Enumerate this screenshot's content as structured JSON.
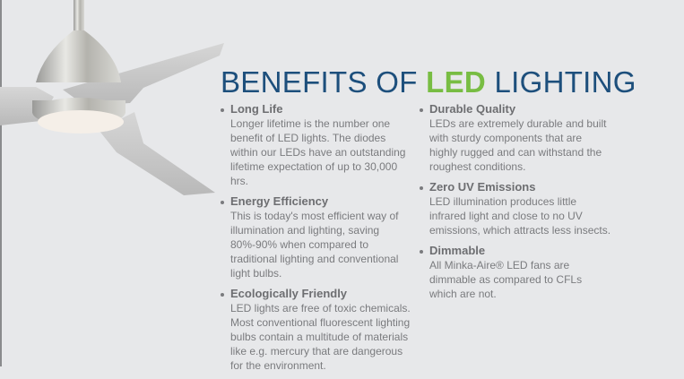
{
  "title": {
    "prefix": "BENEFITS OF ",
    "highlight": "LED",
    "suffix": " LIGHTING"
  },
  "colors": {
    "title": "#1d4f7c",
    "highlight": "#78bd43",
    "text": "#7a7b7e",
    "background": "#e7e8ea"
  },
  "image": "ceiling-fan-with-led-light",
  "columns": [
    [
      {
        "heading": "Long Life",
        "text": "Longer lifetime is the number one benefit of LED lights. The diodes within our LEDs have an outstanding lifetime expectation of up to 30,000 hrs."
      },
      {
        "heading": "Energy Efficiency",
        "text": "This is today's most efficient way of illumination and lighting, saving 80%-90% when compared to traditional lighting and conventional light bulbs."
      },
      {
        "heading": "Ecologically Friendly",
        "text": "LED lights are free of toxic chemicals. Most conventional fluorescent lighting bulbs contain a multitude of materials like e.g. mercury that are dangerous for the environment."
      }
    ],
    [
      {
        "heading": "Durable Quality",
        "text": "LEDs are extremely durable and built with sturdy components that are highly rugged and can withstand the roughest conditions."
      },
      {
        "heading": "Zero UV Emissions",
        "text": "LED illumination produces little infrared light and close to no UV emissions, which attracts less insects."
      },
      {
        "heading": "Dimmable",
        "text": "All Minka-Aire® LED fans are dimmable as compared to CFLs which are not."
      }
    ]
  ]
}
